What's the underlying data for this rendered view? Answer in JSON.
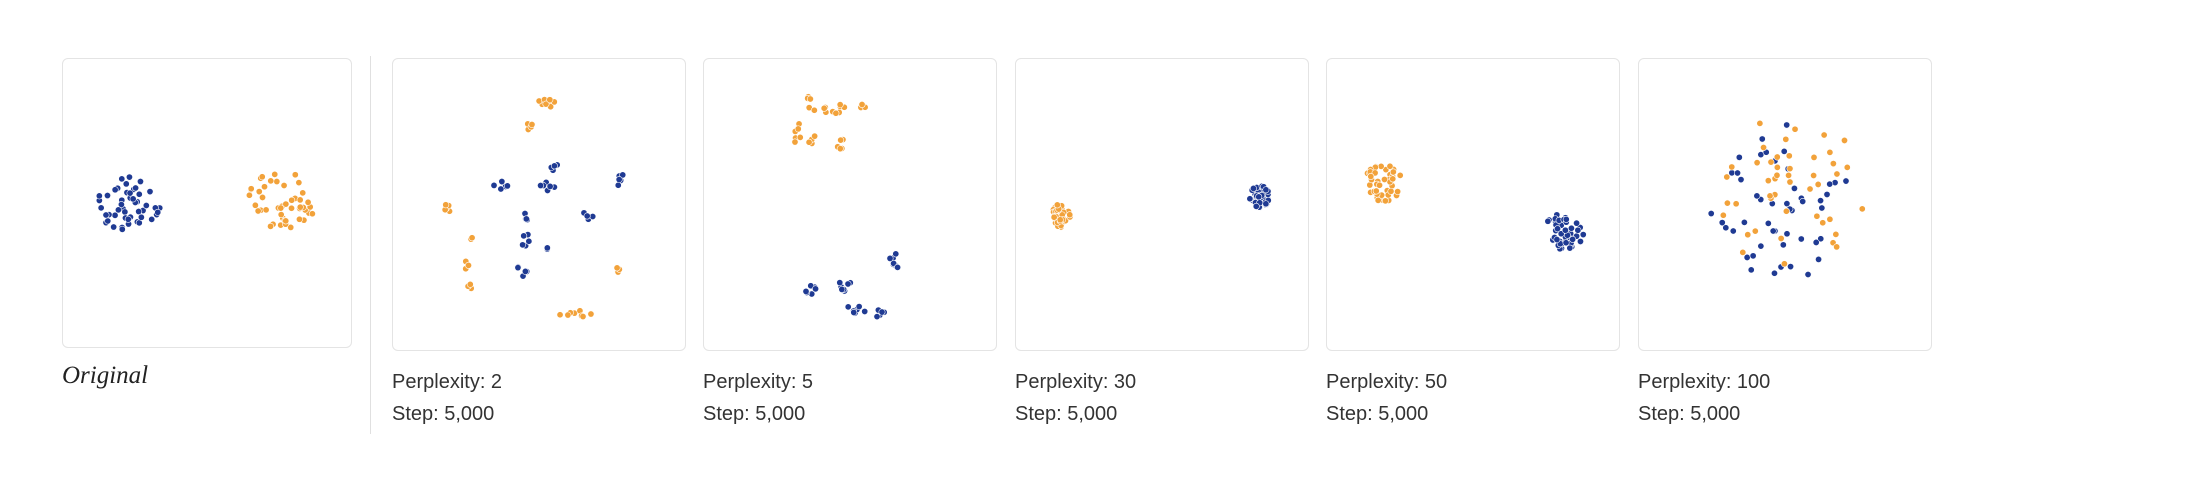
{
  "colors": {
    "series_a": "#1f3a93",
    "series_b": "#f2a23a"
  },
  "original": {
    "caption": "Original"
  },
  "runs": [
    {
      "perplexity_label": "Perplexity: 2",
      "step_label": "Step: 5,000"
    },
    {
      "perplexity_label": "Perplexity: 5",
      "step_label": "Step: 5,000"
    },
    {
      "perplexity_label": "Perplexity: 30",
      "step_label": "Step: 5,000"
    },
    {
      "perplexity_label": "Perplexity: 50",
      "step_label": "Step: 5,000"
    },
    {
      "perplexity_label": "Perplexity: 100",
      "step_label": "Step: 5,000"
    }
  ],
  "chart_data": [
    {
      "type": "scatter",
      "name": "Original",
      "xlim": [
        0,
        100
      ],
      "ylim": [
        0,
        100
      ],
      "series": [
        {
          "color": "#1f3a93",
          "clusters": [
            {
              "cx": 21,
              "cy": 50,
              "rx": 14,
              "ry": 10,
              "n": 48,
              "seed": 11
            }
          ]
        },
        {
          "color": "#f2a23a",
          "clusters": [
            {
              "cx": 78,
              "cy": 49,
              "rx": 13,
              "ry": 11,
              "n": 46,
              "seed": 23
            }
          ]
        }
      ]
    },
    {
      "type": "scatter",
      "name": "Perplexity 2",
      "xlim": [
        0,
        100
      ],
      "ylim": [
        0,
        100
      ],
      "series": [
        {
          "color": "#1f3a93",
          "clusters": [
            {
              "cx": 36,
              "cy": 43,
              "rx": 3,
              "ry": 2,
              "n": 6,
              "seed": 1
            },
            {
              "cx": 45,
              "cy": 54,
              "rx": 2,
              "ry": 2,
              "n": 4,
              "seed": 2
            },
            {
              "cx": 45,
              "cy": 63,
              "rx": 1.5,
              "ry": 3,
              "n": 5,
              "seed": 3
            },
            {
              "cx": 44,
              "cy": 74,
              "rx": 2,
              "ry": 3,
              "n": 5,
              "seed": 4
            },
            {
              "cx": 53,
              "cy": 43,
              "rx": 3,
              "ry": 2,
              "n": 7,
              "seed": 5
            },
            {
              "cx": 55,
              "cy": 36,
              "rx": 2,
              "ry": 1.5,
              "n": 4,
              "seed": 6
            },
            {
              "cx": 68,
              "cy": 54,
              "rx": 2,
              "ry": 1.5,
              "n": 4,
              "seed": 7
            },
            {
              "cx": 80,
              "cy": 41,
              "rx": 3,
              "ry": 2,
              "n": 5,
              "seed": 8
            },
            {
              "cx": 53,
              "cy": 66,
              "rx": 1.5,
              "ry": 1.5,
              "n": 2,
              "seed": 9
            }
          ]
        },
        {
          "color": "#f2a23a",
          "clusters": [
            {
              "cx": 54,
              "cy": 12,
              "rx": 5,
              "ry": 2,
              "n": 8,
              "seed": 12
            },
            {
              "cx": 46,
              "cy": 21,
              "rx": 2,
              "ry": 2,
              "n": 4,
              "seed": 13
            },
            {
              "cx": 17,
              "cy": 51,
              "rx": 3,
              "ry": 2,
              "n": 5,
              "seed": 14
            },
            {
              "cx": 25,
              "cy": 62,
              "rx": 1,
              "ry": 1,
              "n": 2,
              "seed": 15
            },
            {
              "cx": 23,
              "cy": 72,
              "rx": 1.5,
              "ry": 2,
              "n": 3,
              "seed": 16
            },
            {
              "cx": 25,
              "cy": 80,
              "rx": 2,
              "ry": 1,
              "n": 3,
              "seed": 17
            },
            {
              "cx": 79,
              "cy": 73,
              "rx": 1.5,
              "ry": 2,
              "n": 3,
              "seed": 18
            },
            {
              "cx": 63,
              "cy": 90,
              "rx": 7,
              "ry": 1.5,
              "n": 8,
              "seed": 19
            }
          ]
        }
      ]
    },
    {
      "type": "scatter",
      "name": "Perplexity 5",
      "xlim": [
        0,
        100
      ],
      "ylim": [
        0,
        100
      ],
      "series": [
        {
          "color": "#f2a23a",
          "clusters": [
            {
              "cx": 30,
              "cy": 24,
              "rx": 2,
              "ry": 5,
              "n": 7,
              "seed": 31
            },
            {
              "cx": 35,
              "cy": 13,
              "rx": 3,
              "ry": 3,
              "n": 5,
              "seed": 32
            },
            {
              "cx": 46,
              "cy": 15,
              "rx": 6,
              "ry": 2,
              "n": 9,
              "seed": 33
            },
            {
              "cx": 54,
              "cy": 13,
              "rx": 2,
              "ry": 2,
              "n": 3,
              "seed": 34
            },
            {
              "cx": 47,
              "cy": 28,
              "rx": 2,
              "ry": 2,
              "n": 5,
              "seed": 35
            },
            {
              "cx": 36,
              "cy": 26,
              "rx": 2,
              "ry": 2,
              "n": 4,
              "seed": 36
            }
          ]
        },
        {
          "color": "#1f3a93",
          "clusters": [
            {
              "cx": 36,
              "cy": 81,
              "rx": 3,
              "ry": 2,
              "n": 6,
              "seed": 41
            },
            {
              "cx": 48,
              "cy": 81,
              "rx": 3,
              "ry": 3,
              "n": 7,
              "seed": 42
            },
            {
              "cx": 52,
              "cy": 89,
              "rx": 4,
              "ry": 2,
              "n": 8,
              "seed": 43
            },
            {
              "cx": 61,
              "cy": 90,
              "rx": 3,
              "ry": 1.5,
              "n": 5,
              "seed": 44
            },
            {
              "cx": 67,
              "cy": 71,
              "rx": 3,
              "ry": 3,
              "n": 7,
              "seed": 45
            }
          ]
        }
      ]
    },
    {
      "type": "scatter",
      "name": "Perplexity 30",
      "xlim": [
        0,
        100
      ],
      "ylim": [
        0,
        100
      ],
      "series": [
        {
          "color": "#f2a23a",
          "clusters": [
            {
              "cx": 13,
              "cy": 54,
              "rx": 3.5,
              "ry": 4.5,
              "n": 40,
              "seed": 51
            }
          ]
        },
        {
          "color": "#1f3a93",
          "clusters": [
            {
              "cx": 86,
              "cy": 47,
              "rx": 4,
              "ry": 4,
              "n": 40,
              "seed": 52
            }
          ]
        }
      ]
    },
    {
      "type": "scatter",
      "name": "Perplexity 50",
      "xlim": [
        0,
        100
      ],
      "ylim": [
        0,
        100
      ],
      "series": [
        {
          "color": "#f2a23a",
          "clusters": [
            {
              "cx": 17,
              "cy": 42,
              "rx": 7,
              "ry": 7,
              "n": 44,
              "seed": 61
            }
          ]
        },
        {
          "color": "#1f3a93",
          "clusters": [
            {
              "cx": 83,
              "cy": 60,
              "rx": 8,
              "ry": 6.5,
              "n": 46,
              "seed": 62
            }
          ]
        }
      ]
    },
    {
      "type": "scatter",
      "name": "Perplexity 100",
      "xlim": [
        0,
        100
      ],
      "ylim": [
        0,
        100
      ],
      "series": [
        {
          "color": "#1f3a93",
          "clusters": [
            {
              "cx": 48,
              "cy": 50,
              "rx": 26,
              "ry": 30,
              "n": 48,
              "seed": 71
            }
          ]
        },
        {
          "color": "#f2a23a",
          "clusters": [
            {
              "cx": 52,
              "cy": 45,
              "rx": 28,
              "ry": 30,
              "n": 46,
              "seed": 72
            }
          ]
        }
      ]
    }
  ]
}
